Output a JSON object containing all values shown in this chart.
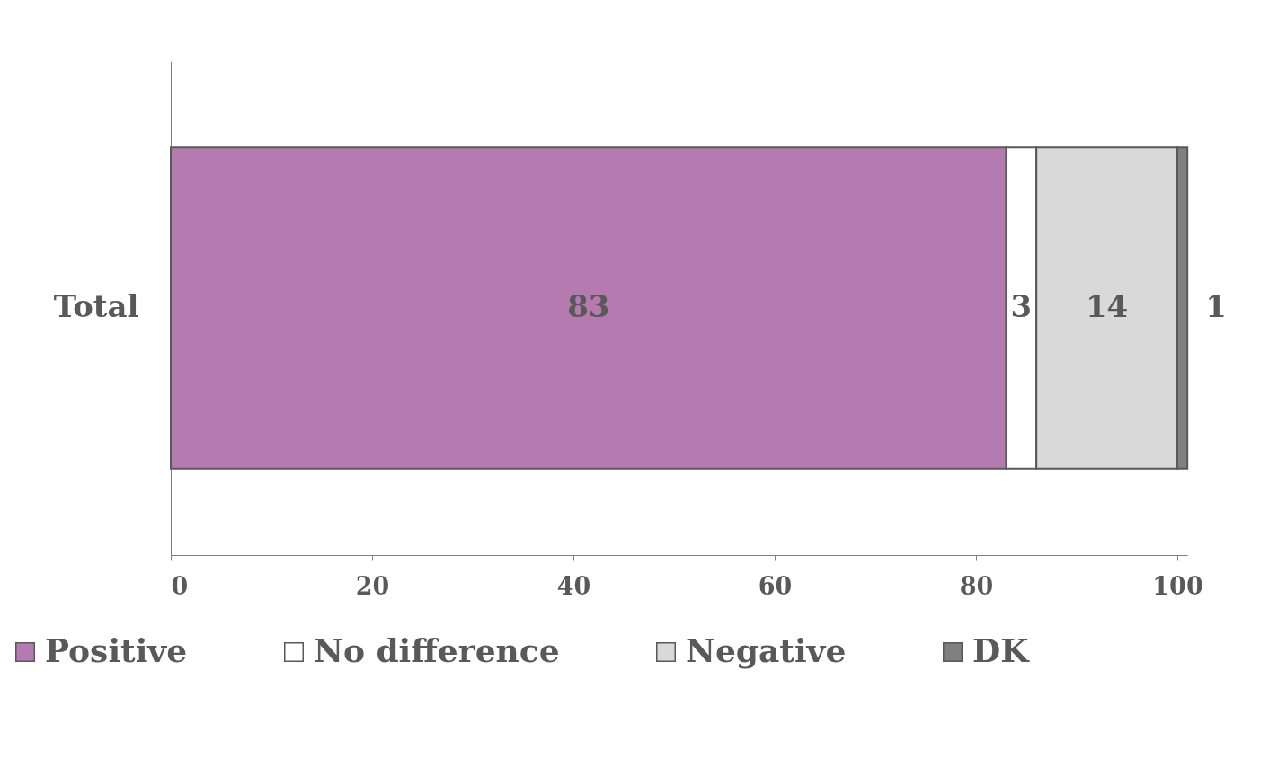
{
  "chart_data": {
    "type": "bar",
    "orientation": "horizontal",
    "stacked": true,
    "categories": [
      "Total"
    ],
    "series": [
      {
        "name": "Positive",
        "color": "#b57ab0",
        "values": [
          83
        ]
      },
      {
        "name": "No difference",
        "color": "#ffffff",
        "values": [
          3
        ]
      },
      {
        "name": "Negative",
        "color": "#d9d9d9",
        "values": [
          14
        ]
      },
      {
        "name": "DK",
        "color": "#808080",
        "values": [
          1
        ]
      }
    ],
    "xlim": [
      0,
      101
    ],
    "xticks": [
      0,
      20,
      40,
      60,
      80,
      100
    ],
    "data_labels": true,
    "legend": "bottom",
    "grid": false
  }
}
